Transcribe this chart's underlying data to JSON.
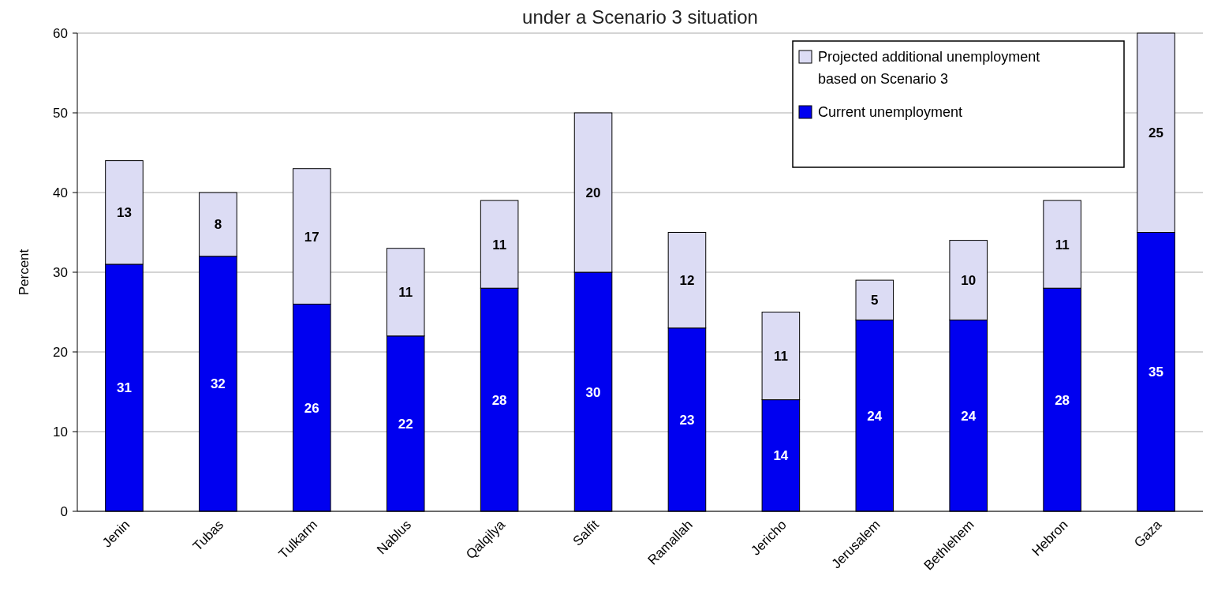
{
  "chart_data": {
    "type": "bar",
    "title": "under a Scenario 3 situation",
    "ylabel": "Percent",
    "stacked": true,
    "categories": [
      "Jenin",
      "Tubas",
      "Tulkarm",
      "Nablus",
      "Qalqilya",
      "Salfit",
      "Ramallah",
      "Jericho",
      "Jerusalem",
      "Bethlehem",
      "Hebron",
      "Gaza"
    ],
    "series": [
      {
        "name": "Current unemployment",
        "color": "#0000f0",
        "values": [
          31,
          32,
          26,
          22,
          28,
          30,
          23,
          14,
          24,
          24,
          28,
          35
        ]
      },
      {
        "name": "Projected additional unemployment based on Scenario 3",
        "color": "#dcdcf4",
        "values": [
          13,
          8,
          17,
          11,
          11,
          20,
          12,
          11,
          5,
          10,
          11,
          25
        ]
      }
    ],
    "ylim": [
      0,
      60
    ],
    "yticks": [
      0,
      10,
      20,
      30,
      40,
      50,
      60
    ],
    "grid": "y",
    "legend": "top right",
    "data_labels": true
  }
}
